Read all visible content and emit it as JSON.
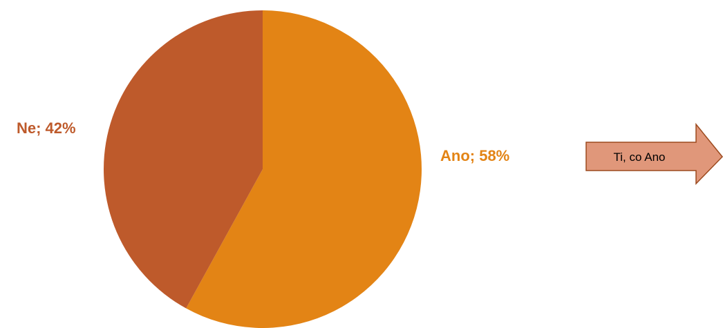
{
  "chart_data": {
    "type": "pie",
    "slices": [
      {
        "name": "Ano",
        "value": 58,
        "label": "Ano; 58%",
        "color": "#E38415"
      },
      {
        "name": "Ne",
        "value": 42,
        "label": "Ne; 42%",
        "color": "#BE5A2B"
      }
    ],
    "start": "12 o'clock",
    "direction": "clockwise",
    "label_text_colors": {
      "Ano": "#E38415",
      "Ne": "#BE5A2B"
    }
  },
  "callout": {
    "text": "Ti, co Ano",
    "shape": "right-arrow",
    "fill": "#E0977A",
    "stroke": "#9C4A1E"
  }
}
